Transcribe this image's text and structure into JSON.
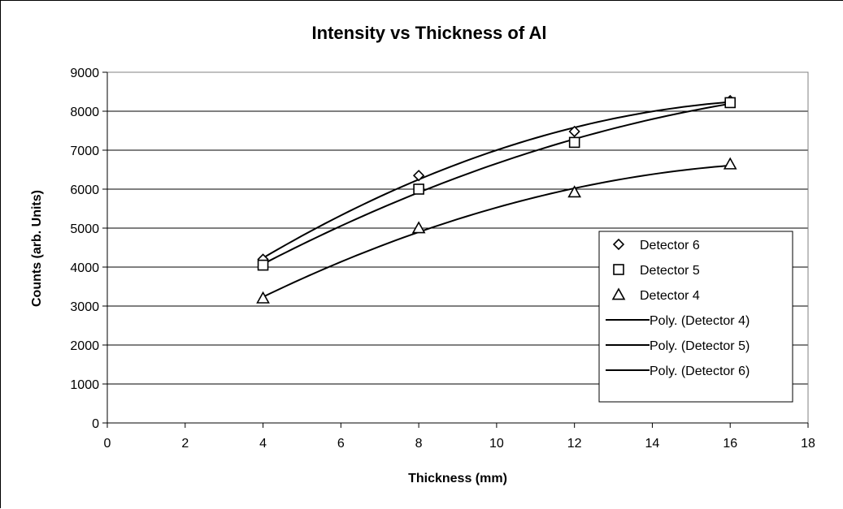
{
  "chart_data": {
    "type": "scatter",
    "title": "Intensity vs Thickness of Al",
    "xlabel": "Thickness (mm)",
    "ylabel": "Counts (arb. Units)",
    "xlim": [
      0,
      18
    ],
    "ylim": [
      0,
      9000
    ],
    "x_ticks": [
      0,
      2,
      4,
      6,
      8,
      10,
      12,
      14,
      16,
      18
    ],
    "y_ticks": [
      0,
      1000,
      2000,
      3000,
      4000,
      5000,
      6000,
      7000,
      8000,
      9000
    ],
    "grid": "horizontal",
    "legend_position": "right",
    "series": [
      {
        "name": "Detector 6",
        "marker": "diamond",
        "x": [
          4,
          8,
          12,
          16
        ],
        "y": [
          4200,
          6350,
          7480,
          8270
        ]
      },
      {
        "name": "Detector 5",
        "marker": "square",
        "x": [
          4,
          8,
          12,
          16
        ],
        "y": [
          4050,
          6000,
          7200,
          8220
        ]
      },
      {
        "name": "Detector 4",
        "marker": "triangle",
        "x": [
          4,
          8,
          12,
          16
        ],
        "y": [
          3200,
          5000,
          5920,
          6640
        ]
      }
    ],
    "trendlines": [
      {
        "name": "Poly. (Detector 4)",
        "of": "Detector 4"
      },
      {
        "name": "Poly. (Detector 5)",
        "of": "Detector 5"
      },
      {
        "name": "Poly. (Detector 6)",
        "of": "Detector 6"
      }
    ]
  }
}
